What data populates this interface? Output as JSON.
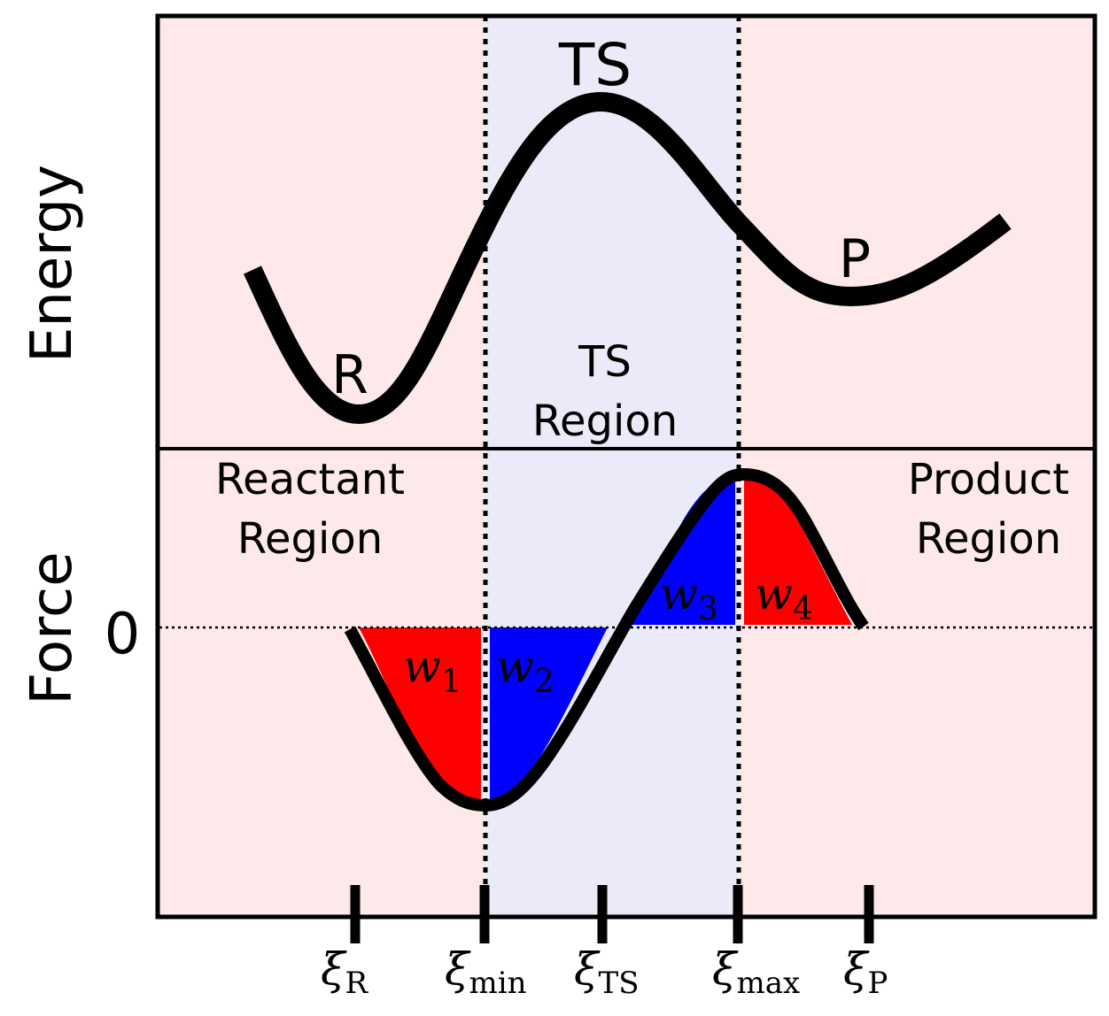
{
  "axes": {
    "energy_label": "Energy",
    "force_label": "Force",
    "zero_label": "0"
  },
  "energy_panel": {
    "reactant_label": "R",
    "ts_label": "TS",
    "product_label": "P"
  },
  "regions": {
    "ts_region_line1": "TS",
    "ts_region_line2": "Region",
    "reactant_line1": "Reactant",
    "reactant_line2": "Region",
    "product_line1": "Product",
    "product_line2": "Region"
  },
  "work_areas": [
    {
      "symbol": "w",
      "sub": "1",
      "color": "#ff0000"
    },
    {
      "symbol": "w",
      "sub": "2",
      "color": "#0000ff"
    },
    {
      "symbol": "w",
      "sub": "3",
      "color": "#0000ff"
    },
    {
      "symbol": "w",
      "sub": "4",
      "color": "#ff0000"
    }
  ],
  "ticks": [
    {
      "symbol": "ξ",
      "sub": "R"
    },
    {
      "symbol": "ξ",
      "sub": "min"
    },
    {
      "symbol": "ξ",
      "sub": "TS"
    },
    {
      "symbol": "ξ",
      "sub": "max"
    },
    {
      "symbol": "ξ",
      "sub": "P"
    }
  ],
  "colors": {
    "outer_region": "#fde9e9",
    "ts_region": "#eaeaf9",
    "positive_work": "#0000ff",
    "negative_work": "#ff0000",
    "curve": "#000000"
  }
}
